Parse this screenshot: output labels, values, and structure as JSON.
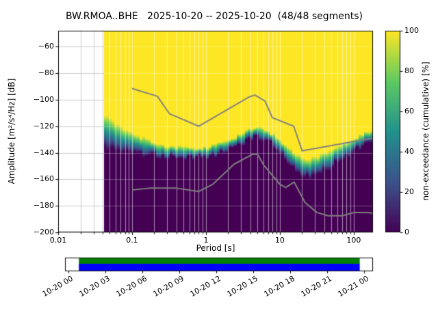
{
  "chart_data": {
    "type": "heatmap",
    "title": "BW.RMOA..BHE   2025-10-20 -- 2025-10-20  (48/48 segments)",
    "station": "BW.RMOA..BHE",
    "date_range": "2025-10-20 -- 2025-10-20",
    "segments": "48/48 segments",
    "xlabel": "Period [s]",
    "ylabel": "Amplitude [m²/s⁴/Hz] [dB]",
    "x_scale": "log",
    "xlim": [
      0.01,
      182
    ],
    "ylim": [
      -200,
      -48
    ],
    "grid": true,
    "x_ticks": {
      "values": [
        0.01,
        0.1,
        1,
        10,
        100
      ],
      "labels": [
        "0.01",
        "0.1",
        "1",
        "10",
        "100"
      ]
    },
    "y_ticks": {
      "values": [
        -60,
        -80,
        -100,
        -120,
        -140,
        -160,
        -180,
        -200
      ],
      "labels": [
        "−60",
        "−80",
        "−100",
        "−120",
        "−140",
        "−160",
        "−180",
        "−200"
      ]
    },
    "colorbar": {
      "label": "non-exceedance (cumulative) [%]",
      "range": [
        0,
        100
      ],
      "ticks": {
        "values": [
          0,
          20,
          40,
          60,
          80,
          100
        ],
        "labels": [
          "0",
          "20",
          "40",
          "60",
          "80",
          "100"
        ]
      },
      "colormap": "viridis",
      "viridis_stops": [
        [
          0,
          "#440154"
        ],
        [
          0.25,
          "#3b528b"
        ],
        [
          0.5,
          "#21918c"
        ],
        [
          0.75,
          "#5ec962"
        ],
        [
          1,
          "#fde725"
        ]
      ]
    },
    "distribution": {
      "description": "PPSD cumulative non-exceedance: yellow above upper_db (100%), dark purple below lower_db (0%), viridis gradient between",
      "data_period_range": [
        0.042,
        182
      ],
      "periods": [
        0.046,
        0.055,
        0.07,
        0.09,
        0.11,
        0.14,
        0.18,
        0.23,
        0.3,
        0.4,
        0.55,
        0.75,
        1.0,
        1.4,
        1.9,
        2.6,
        3.5,
        4.5,
        5.5,
        7.0,
        9.0,
        12,
        15,
        19,
        24,
        30,
        40,
        55,
        75,
        100,
        130,
        182
      ],
      "upper_db": [
        -113,
        -116,
        -120,
        -123.5,
        -126,
        -128.5,
        -131,
        -133,
        -134.5,
        -135.5,
        -136,
        -136,
        -135.5,
        -133.5,
        -130.5,
        -127,
        -123.5,
        -121.5,
        -121,
        -123,
        -128,
        -134,
        -139,
        -142.5,
        -144,
        -143,
        -140.5,
        -136.5,
        -132.5,
        -129,
        -126,
        -123
      ],
      "median_db": [
        -125,
        -127,
        -129.8,
        -132,
        -133.5,
        -135,
        -136.5,
        -137.8,
        -138.8,
        -139.5,
        -139.8,
        -139.8,
        -139.3,
        -137.5,
        -134.8,
        -131.3,
        -127.8,
        -125.5,
        -125,
        -127.3,
        -132.5,
        -139.3,
        -145.5,
        -149.5,
        -151.3,
        -150.3,
        -147.3,
        -142.8,
        -138.3,
        -134.3,
        -131,
        -127.8
      ],
      "lower_db": [
        -137,
        -138,
        -139.5,
        -140.5,
        -141,
        -141.5,
        -142,
        -142.5,
        -143,
        -143.5,
        -143.5,
        -143.5,
        -143,
        -141.5,
        -139,
        -135.5,
        -132,
        -129.5,
        -129,
        -131.5,
        -137,
        -144.5,
        -152,
        -156.5,
        -158.5,
        -157.5,
        -154,
        -149,
        -144,
        -139.5,
        -136,
        -132.5
      ]
    },
    "noise_models": {
      "color": "#808080",
      "high_noise_model": [
        [
          0.1,
          -91.5
        ],
        [
          0.22,
          -97.4
        ],
        [
          0.32,
          -110.5
        ],
        [
          0.8,
          -120.0
        ],
        [
          3.8,
          -98.0
        ],
        [
          4.6,
          -96.5
        ],
        [
          6.3,
          -101.0
        ],
        [
          7.9,
          -113.5
        ],
        [
          15.4,
          -120.0
        ],
        [
          20.0,
          -138.5
        ],
        [
          354.8,
          -126.0
        ]
      ],
      "low_noise_model": [
        [
          0.1,
          -168.0
        ],
        [
          0.17,
          -166.7
        ],
        [
          0.4,
          -166.7
        ],
        [
          0.8,
          -169.2
        ],
        [
          1.24,
          -163.7
        ],
        [
          2.4,
          -148.6
        ],
        [
          4.3,
          -141.1
        ],
        [
          5.0,
          -141.1
        ],
        [
          6.0,
          -149.0
        ],
        [
          10.0,
          -163.8
        ],
        [
          12.0,
          -166.2
        ],
        [
          15.6,
          -162.1
        ],
        [
          21.9,
          -177.5
        ],
        [
          31.6,
          -185.0
        ],
        [
          45.0,
          -187.5
        ],
        [
          70.0,
          -187.5
        ],
        [
          101.0,
          -185.0
        ],
        [
          154.0,
          -185.0
        ],
        [
          328.0,
          -187.5
        ]
      ]
    },
    "timeline": {
      "tick_labels": [
        "10-20 00",
        "10-20 03",
        "10-20 06",
        "10-20 09",
        "10-20 12",
        "10-20 15",
        "10-20 18",
        "10-20 21",
        "10-21 00"
      ],
      "used_color": "#008000",
      "data_color": "#0000ff",
      "fill_start_frac": 0.045,
      "fill_end_frac": 0.957
    }
  }
}
